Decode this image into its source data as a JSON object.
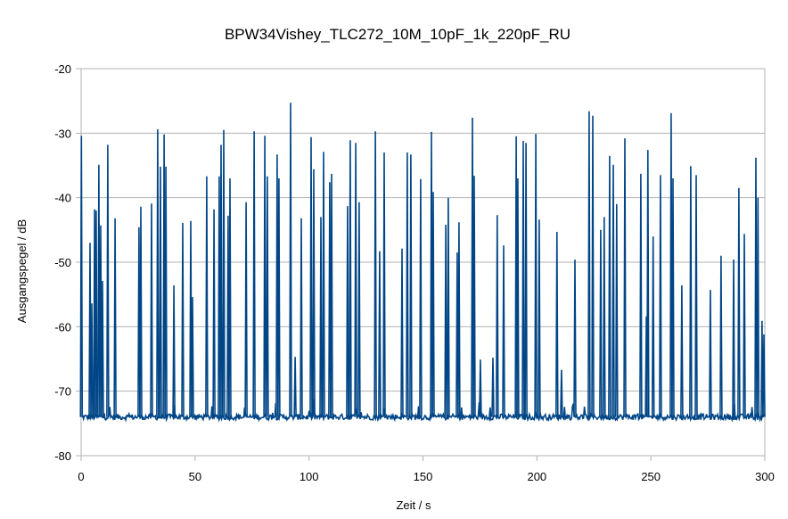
{
  "chart_data": {
    "type": "line",
    "title": "BPW34Vishey_TLC272_10M_10pF_1k_220pF_RU",
    "xlabel": "Zeit / s",
    "ylabel": "Ausgangspegel / dB",
    "xlim": [
      0,
      300
    ],
    "ylim": [
      -80,
      -20
    ],
    "xticks": [
      0,
      50,
      100,
      150,
      200,
      250,
      300
    ],
    "yticks": [
      -20,
      -30,
      -40,
      -50,
      -60,
      -70,
      -80
    ],
    "grid": "horizontal",
    "legend": "none",
    "line_color": "#004586",
    "baseline_db": -74,
    "spikes": [
      [
        0.1,
        -30.4
      ],
      [
        3.9,
        -47.0
      ],
      [
        4.7,
        -56.4
      ],
      [
        5.9,
        -41.8
      ],
      [
        6.6,
        -42.0
      ],
      [
        7.8,
        -34.9
      ],
      [
        8.6,
        -44.3
      ],
      [
        9.4,
        -52.9
      ],
      [
        11.7,
        -31.8
      ],
      [
        14.9,
        -43.2
      ],
      [
        25.4,
        -44.6
      ],
      [
        26.2,
        -41.4
      ],
      [
        30.9,
        -40.9
      ],
      [
        33.6,
        -29.4
      ],
      [
        34.8,
        -35.2
      ],
      [
        36.4,
        -30.2
      ],
      [
        37.2,
        -35.2
      ],
      [
        40.7,
        -53.6
      ],
      [
        44.6,
        -43.9
      ],
      [
        48.1,
        -43.6
      ],
      [
        48.9,
        -55.4
      ],
      [
        55.1,
        -36.7
      ],
      [
        58.3,
        -41.8
      ],
      [
        60.6,
        -36.7
      ],
      [
        61.4,
        -31.8
      ],
      [
        62.6,
        -29.5
      ],
      [
        64.5,
        -42.8
      ],
      [
        65.3,
        -37.0
      ],
      [
        72.4,
        -40.7
      ],
      [
        75.9,
        -29.7
      ],
      [
        80.6,
        -30.4
      ],
      [
        81.7,
        -36.7
      ],
      [
        86.0,
        -33.3
      ],
      [
        86.8,
        -37.0
      ],
      [
        91.9,
        -25.3
      ],
      [
        93.9,
        -64.7
      ],
      [
        96.6,
        -43.2
      ],
      [
        100.9,
        -30.6
      ],
      [
        102.1,
        -35.6
      ],
      [
        105.2,
        -43.0
      ],
      [
        106.4,
        -32.9
      ],
      [
        109.1,
        -37.6
      ],
      [
        109.9,
        -36.3
      ],
      [
        116.9,
        -41.3
      ],
      [
        118.1,
        -31.1
      ],
      [
        120.5,
        -31.5
      ],
      [
        122.0,
        -40.7
      ],
      [
        129.1,
        -29.7
      ],
      [
        131.0,
        -48.3
      ],
      [
        133.0,
        -33.0
      ],
      [
        140.8,
        -47.9
      ],
      [
        143.1,
        -33.0
      ],
      [
        144.7,
        -33.3
      ],
      [
        149.0,
        -37.1
      ],
      [
        153.7,
        -29.8
      ],
      [
        154.5,
        -39.1
      ],
      [
        160.0,
        -44.2
      ],
      [
        161.1,
        -40.0
      ],
      [
        165.0,
        -48.5
      ],
      [
        165.8,
        -43.8
      ],
      [
        171.7,
        -27.6
      ],
      [
        172.5,
        -36.6
      ],
      [
        175.2,
        -65.1
      ],
      [
        179.5,
        -72.5
      ],
      [
        180.7,
        -64.8
      ],
      [
        182.6,
        -42.7
      ],
      [
        185.4,
        -47.4
      ],
      [
        190.9,
        -30.5
      ],
      [
        191.6,
        -37.0
      ],
      [
        194.0,
        -31.2
      ],
      [
        195.2,
        -31.5
      ],
      [
        199.5,
        -30.1
      ],
      [
        201.0,
        -43.4
      ],
      [
        208.8,
        -45.3
      ],
      [
        210.8,
        -66.7
      ],
      [
        216.7,
        -49.6
      ],
      [
        222.9,
        -26.6
      ],
      [
        224.5,
        -27.3
      ],
      [
        228.0,
        -45.0
      ],
      [
        229.5,
        -43.0
      ],
      [
        231.9,
        -33.5
      ],
      [
        233.5,
        -34.9
      ],
      [
        235.0,
        -41.0
      ],
      [
        238.6,
        -30.8
      ],
      [
        245.6,
        -36.3
      ],
      [
        248.0,
        -58.4
      ],
      [
        248.7,
        -32.6
      ],
      [
        251.0,
        -46.0
      ],
      [
        254.2,
        -36.5
      ],
      [
        258.9,
        -26.9
      ],
      [
        259.7,
        -37.0
      ],
      [
        263.6,
        -53.6
      ],
      [
        267.5,
        -35.1
      ],
      [
        269.9,
        -36.5
      ],
      [
        276.1,
        -54.3
      ],
      [
        280.8,
        -49.0
      ],
      [
        286.3,
        -49.6
      ],
      [
        288.6,
        -38.5
      ],
      [
        291.0,
        -45.6
      ],
      [
        296.1,
        -33.8
      ],
      [
        297.0,
        -40.0
      ],
      [
        298.8,
        -59.1
      ],
      [
        299.6,
        -61.2
      ]
    ]
  }
}
